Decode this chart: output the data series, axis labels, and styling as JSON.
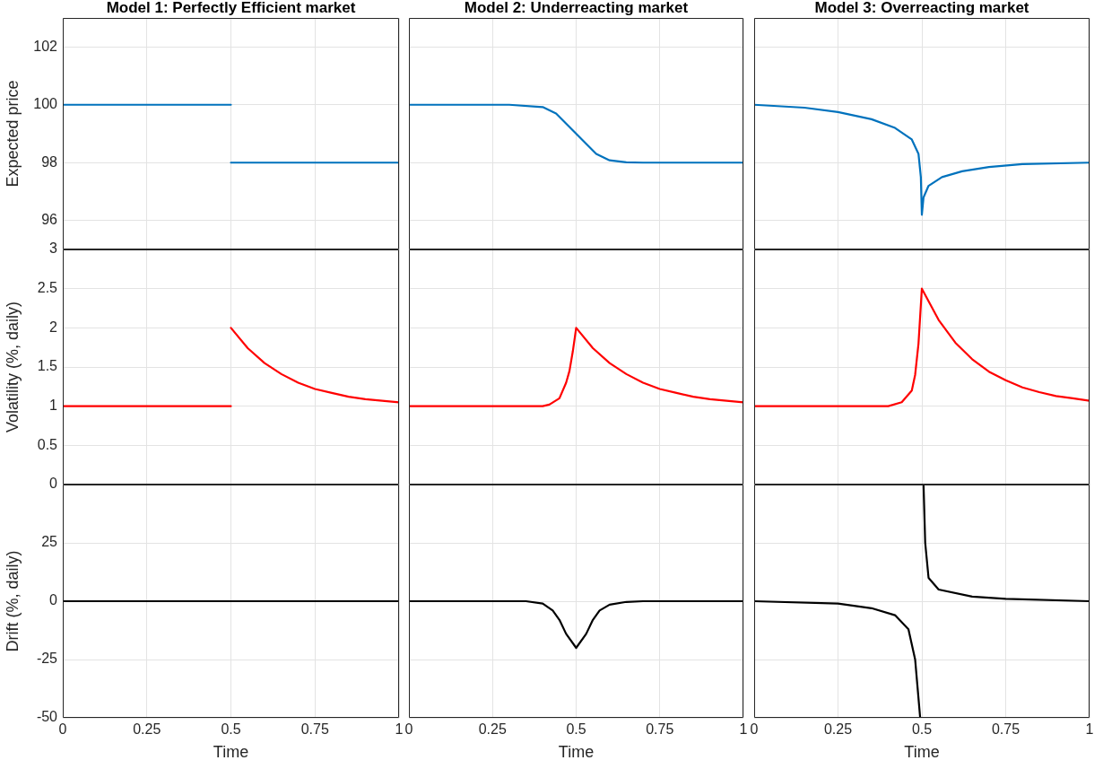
{
  "chart_data": [
    {
      "type": "line",
      "title": "Model 1: Perfectly Efficient market",
      "ylabel": "Expected price",
      "xlim": [
        0,
        1
      ],
      "xticks": [
        0,
        0.25,
        0.5,
        0.75,
        1
      ],
      "ylim": [
        95,
        103
      ],
      "yticks": [
        96,
        98,
        100,
        102
      ],
      "grid": true,
      "tick_labels": "y",
      "series": [
        {
          "color": "#0072bd",
          "x": [
            0,
            0.5
          ],
          "values": [
            100,
            100
          ]
        },
        {
          "color": "#0072bd",
          "x": [
            0.5,
            1
          ],
          "values": [
            98,
            98
          ]
        }
      ]
    },
    {
      "type": "line",
      "title": "Model 2: Underreacting market",
      "xlim": [
        0,
        1
      ],
      "xticks": [
        0,
        0.25,
        0.5,
        0.75,
        1
      ],
      "ylim": [
        95,
        103
      ],
      "yticks": [
        96,
        98,
        100,
        102
      ],
      "grid": true,
      "tick_labels": false,
      "series": [
        {
          "color": "#0072bd",
          "x": [
            0,
            0.3,
            0.4,
            0.44,
            0.47,
            0.5,
            0.53,
            0.56,
            0.6,
            0.65,
            0.7,
            1
          ],
          "values": [
            100,
            100,
            99.92,
            99.7,
            99.35,
            99,
            98.65,
            98.3,
            98.08,
            98.01,
            98,
            98
          ]
        }
      ]
    },
    {
      "type": "line",
      "title": "Model 3: Overreacting market",
      "xlim": [
        0,
        1
      ],
      "xticks": [
        0,
        0.25,
        0.5,
        0.75,
        1
      ],
      "ylim": [
        95,
        103
      ],
      "yticks": [
        96,
        98,
        100,
        102
      ],
      "grid": true,
      "tick_labels": false,
      "series": [
        {
          "color": "#0072bd",
          "x": [
            0,
            0.15,
            0.25,
            0.35,
            0.42,
            0.47,
            0.49,
            0.497,
            0.5,
            0.505,
            0.52,
            0.56,
            0.62,
            0.7,
            0.8,
            1
          ],
          "values": [
            100,
            99.9,
            99.75,
            99.5,
            99.2,
            98.8,
            98.3,
            97.5,
            96.2,
            96.8,
            97.2,
            97.5,
            97.7,
            97.85,
            97.95,
            98
          ]
        }
      ]
    },
    {
      "type": "line",
      "ylabel": "Volatility (%, daily)",
      "xlim": [
        0,
        1
      ],
      "xticks": [
        0,
        0.25,
        0.5,
        0.75,
        1
      ],
      "ylim": [
        0,
        3
      ],
      "yticks": [
        0,
        0.5,
        1,
        1.5,
        2,
        2.5,
        3
      ],
      "grid": true,
      "tick_labels": "y",
      "series": [
        {
          "color": "#ff0000",
          "x": [
            0,
            0.5
          ],
          "values": [
            1,
            1
          ]
        },
        {
          "color": "#ff0000",
          "x": [
            0.5,
            0.55,
            0.6,
            0.65,
            0.7,
            0.75,
            0.8,
            0.85,
            0.9,
            0.95,
            1
          ],
          "values": [
            2,
            1.74,
            1.55,
            1.41,
            1.3,
            1.22,
            1.17,
            1.12,
            1.09,
            1.07,
            1.05
          ]
        }
      ]
    },
    {
      "type": "line",
      "xlim": [
        0,
        1
      ],
      "xticks": [
        0,
        0.25,
        0.5,
        0.75,
        1
      ],
      "ylim": [
        0,
        3
      ],
      "yticks": [
        0,
        0.5,
        1,
        1.5,
        2,
        2.5,
        3
      ],
      "grid": true,
      "tick_labels": false,
      "series": [
        {
          "color": "#ff0000",
          "x": [
            0,
            0.4,
            0.42,
            0.45,
            0.47,
            0.48,
            0.49,
            0.5,
            0.55,
            0.6,
            0.65,
            0.7,
            0.75,
            0.8,
            0.85,
            0.9,
            0.95,
            1
          ],
          "values": [
            1,
            1,
            1.02,
            1.1,
            1.3,
            1.45,
            1.7,
            2,
            1.74,
            1.55,
            1.41,
            1.3,
            1.22,
            1.17,
            1.12,
            1.09,
            1.07,
            1.05
          ]
        }
      ]
    },
    {
      "type": "line",
      "xlim": [
        0,
        1
      ],
      "xticks": [
        0,
        0.25,
        0.5,
        0.75,
        1
      ],
      "ylim": [
        0,
        3
      ],
      "yticks": [
        0,
        0.5,
        1,
        1.5,
        2,
        2.5,
        3
      ],
      "grid": true,
      "tick_labels": false,
      "series": [
        {
          "color": "#ff0000",
          "x": [
            0,
            0.4,
            0.44,
            0.47,
            0.48,
            0.49,
            0.5,
            0.55,
            0.6,
            0.65,
            0.7,
            0.75,
            0.8,
            0.85,
            0.9,
            0.95,
            1
          ],
          "values": [
            1,
            1,
            1.05,
            1.2,
            1.4,
            1.8,
            2.5,
            2.1,
            1.81,
            1.6,
            1.44,
            1.33,
            1.24,
            1.18,
            1.13,
            1.1,
            1.07
          ]
        }
      ]
    },
    {
      "type": "line",
      "xlabel": "Time",
      "ylabel": "Drift (%, daily)",
      "xlim": [
        0,
        1
      ],
      "xticks": [
        0,
        0.25,
        0.5,
        0.75,
        1
      ],
      "ylim": [
        -50,
        50
      ],
      "yticks": [
        -50,
        -25,
        0,
        25
      ],
      "grid": true,
      "series": [
        {
          "color": "#000000",
          "x": [
            0,
            1
          ],
          "values": [
            0,
            0
          ]
        }
      ]
    },
    {
      "type": "line",
      "xlabel": "Time",
      "xlim": [
        0,
        1
      ],
      "xticks": [
        0,
        0.25,
        0.5,
        0.75,
        1
      ],
      "ylim": [
        -50,
        50
      ],
      "yticks": [
        -50,
        -25,
        0,
        25
      ],
      "grid": true,
      "tick_labels": "x",
      "series": [
        {
          "color": "#000000",
          "x": [
            0,
            0.35,
            0.4,
            0.43,
            0.45,
            0.47,
            0.5,
            0.53,
            0.55,
            0.57,
            0.6,
            0.65,
            0.7,
            1
          ],
          "values": [
            0,
            0,
            -1,
            -4,
            -8,
            -14,
            -20,
            -14,
            -8,
            -4,
            -1.5,
            -0.3,
            0,
            0
          ]
        }
      ]
    },
    {
      "type": "line",
      "xlabel": "Time",
      "xlim": [
        0,
        1
      ],
      "xticks": [
        0,
        0.25,
        0.5,
        0.75,
        1
      ],
      "ylim": [
        -50,
        50
      ],
      "yticks": [
        -50,
        -25,
        0,
        25
      ],
      "grid": true,
      "tick_labels": "x",
      "series": [
        {
          "color": "#000000",
          "x": [
            0,
            0.25,
            0.35,
            0.42,
            0.46,
            0.48,
            0.495
          ],
          "values": [
            0,
            -1,
            -3,
            -6,
            -12,
            -25,
            -50
          ]
        },
        {
          "color": "#000000",
          "x": [
            0.505,
            0.51,
            0.52,
            0.55,
            0.65,
            0.75,
            1
          ],
          "values": [
            50,
            25,
            10,
            5,
            2,
            1,
            0
          ]
        }
      ]
    }
  ]
}
